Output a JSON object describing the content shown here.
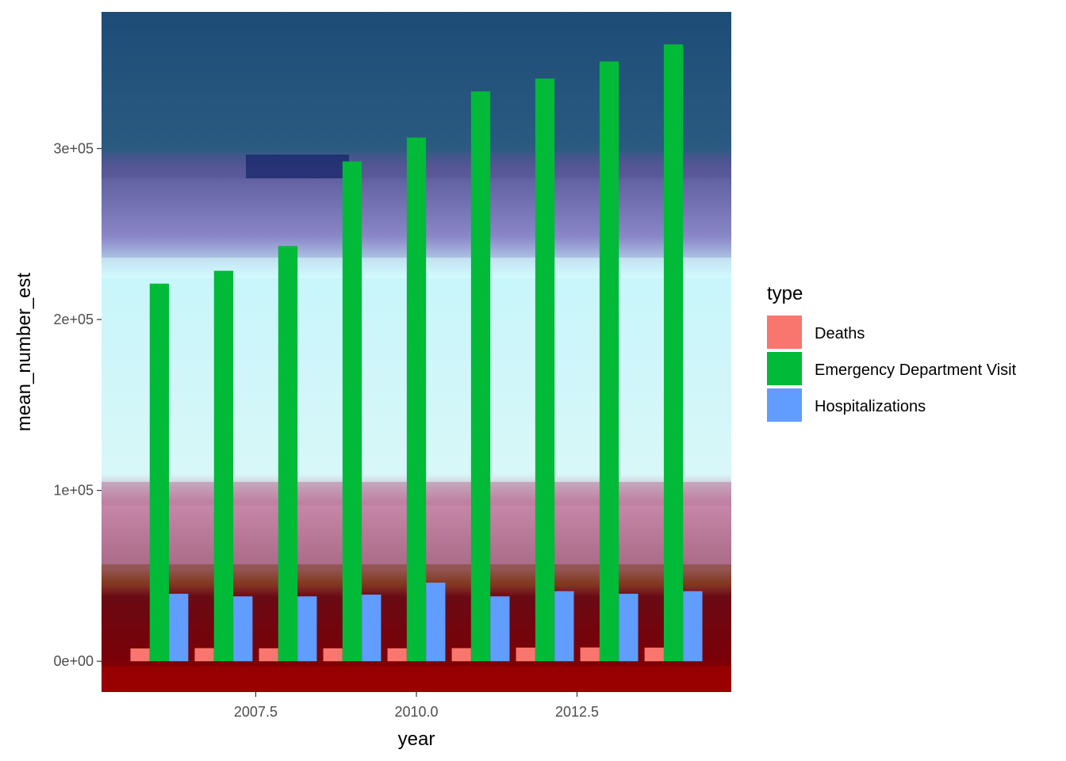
{
  "chart_data": {
    "type": "bar",
    "xlabel": "year",
    "ylabel": "mean_number_est",
    "x": [
      2006,
      2007,
      2008,
      2009,
      2010,
      2011,
      2012,
      2013,
      2014
    ],
    "xlim": [
      2005.1,
      2014.9
    ],
    "ylim": [
      -18000,
      380000
    ],
    "x_ticks": [
      2007.5,
      2010.0,
      2012.5
    ],
    "x_tick_labels": [
      "2007.5",
      "2010.0",
      "2012.5"
    ],
    "y_ticks": [
      0,
      100000,
      200000,
      300000
    ],
    "y_tick_labels": [
      "0e+00",
      "1e+05",
      "2e+05",
      "3e+05"
    ],
    "bar_position": "dodge",
    "series": [
      {
        "name": "Deaths",
        "color": "#F8766D",
        "values": [
          7500,
          7700,
          7600,
          7600,
          7600,
          7700,
          8000,
          8100,
          8000
        ]
      },
      {
        "name": "Emergency Department Visit",
        "color": "#00BA38",
        "values": [
          221000,
          228500,
          243000,
          292500,
          306500,
          333500,
          341000,
          351000,
          361000
        ]
      },
      {
        "name": "Hospitalizations",
        "color": "#619CFF",
        "values": [
          39500,
          38000,
          38000,
          39000,
          46000,
          38000,
          41000,
          39500,
          41000
        ]
      }
    ],
    "legend": {
      "title": "type",
      "position": "right"
    },
    "panel_background": "photographic texture"
  }
}
